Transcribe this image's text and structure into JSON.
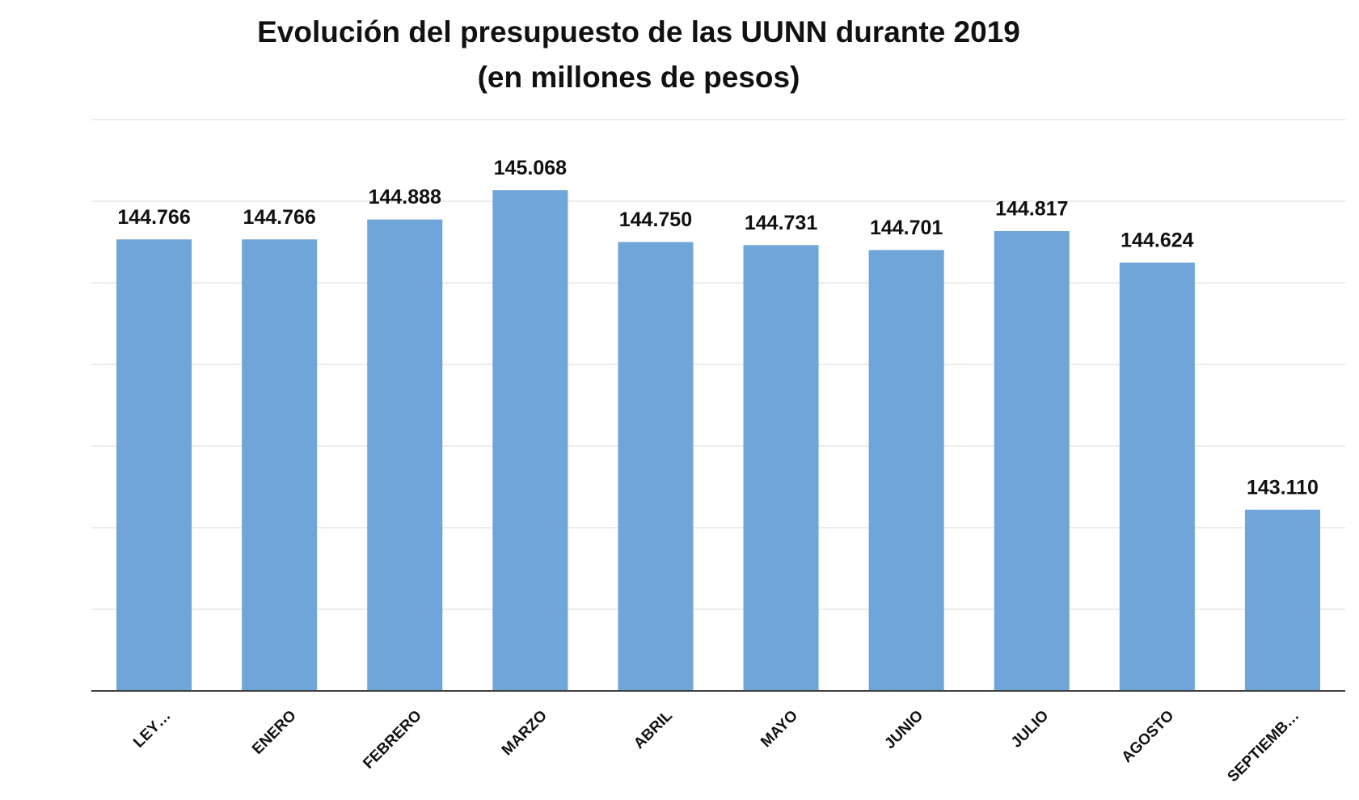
{
  "chart_data": {
    "type": "bar",
    "title": "Evolución del presupuesto de las UUNN durante 2019",
    "subtitle": "(en millones de pesos)",
    "categories": [
      "LEY…",
      "ENERO",
      "FEBRERO",
      "MARZO",
      "ABRIL",
      "MAYO",
      "JUNIO",
      "JULIO",
      "AGOSTO",
      "SEPTIEMB…"
    ],
    "values": [
      144766,
      144766,
      144888,
      145068,
      144750,
      144731,
      144701,
      144817,
      144624,
      143110
    ],
    "value_labels": [
      "144.766",
      "144.766",
      "144.888",
      "145.068",
      "144.750",
      "144.731",
      "144.701",
      "144.817",
      "144.624",
      "143.110"
    ],
    "color": "#6fa5d9",
    "ylim": [
      142000,
      145500
    ],
    "yticks": [
      142000,
      142500,
      143000,
      143500,
      144000,
      144500,
      145000,
      145500
    ],
    "grid": true
  }
}
